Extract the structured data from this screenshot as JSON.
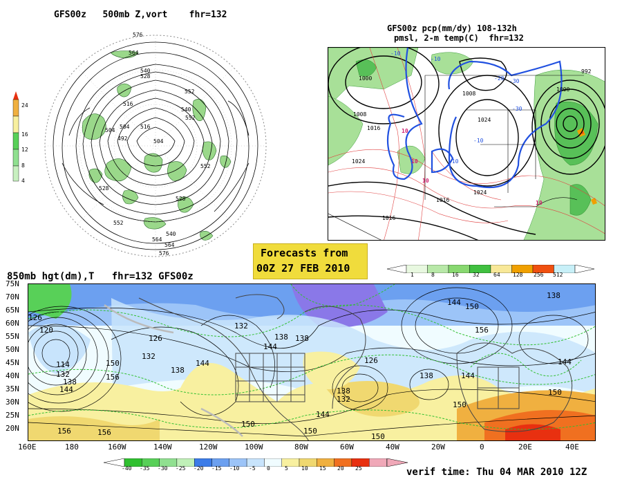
{
  "polar_panel": {
    "title": "GFS00z   500mb Z,vort    fhr=132",
    "colorbar_labels": [
      "24",
      "16",
      "12",
      "8",
      "4"
    ],
    "contour_labels": [
      "576",
      "564",
      "552",
      "540",
      "528",
      "516",
      "504",
      "492",
      "528",
      "552",
      "540",
      "516",
      "504",
      "504",
      "552",
      "564",
      "576",
      "552",
      "564",
      "540",
      "528"
    ]
  },
  "conus_panel": {
    "title_line1": "GFS00z pcp(mm/dy) 108-132h",
    "title_line2": "pmsl, 2-m temp(C)  fhr=132",
    "isobar_labels": [
      "1000",
      "1008",
      "1016",
      "1024",
      "1024",
      "1016",
      "1016",
      "1008",
      "1000",
      "1024",
      "992"
    ],
    "temp_labels": [
      "-10",
      "-10",
      "-20",
      "-30",
      "-30",
      "-10",
      "-10",
      "10",
      "10",
      "10",
      "10"
    ],
    "colorbar_labels": [
      "1",
      "8",
      "16",
      "32",
      "64",
      "128",
      "256",
      "512"
    ],
    "colorbar_colors": [
      "#e8f8e0",
      "#b8e8a8",
      "#88d870",
      "#40c040",
      "#f8e898",
      "#f0a000",
      "#f05010",
      "#c8f0f8"
    ]
  },
  "forecast_box": {
    "line1": "Forecasts from",
    "line2": "00Z 27 FEB 2010"
  },
  "hemi_panel": {
    "title": "850mb hgt(dm),T   fhr=132 GFS00z",
    "lat_labels": [
      "75N",
      "70N",
      "65N",
      "60N",
      "55N",
      "50N",
      "45N",
      "40N",
      "35N",
      "30N",
      "25N",
      "20N"
    ],
    "lon_labels": [
      "160E",
      "180",
      "160W",
      "140W",
      "120W",
      "100W",
      "80W",
      "60W",
      "40W",
      "20W",
      "0",
      "20E",
      "40E"
    ],
    "height_labels": [
      "126",
      "120",
      "114",
      "132",
      "138",
      "144",
      "150",
      "156",
      "126",
      "132",
      "138",
      "144",
      "150",
      "156",
      "132",
      "138",
      "126",
      "138",
      "144",
      "150",
      "138",
      "132",
      "144",
      "150",
      "156",
      "138",
      "144",
      "150",
      "156",
      "144",
      "150",
      "138",
      "144",
      "150"
    ],
    "colorbar_labels": [
      "-40",
      "-35",
      "-30",
      "-25",
      "-20",
      "-15",
      "-10",
      "-5",
      "0",
      "5",
      "10",
      "15",
      "20",
      "25"
    ],
    "colorbar_colors": [
      "#30c030",
      "#58d058",
      "#90e090",
      "#c0f0b8",
      "#3c7ce8",
      "#6ca0f0",
      "#9cc4f8",
      "#c8e4fc",
      "#f0fcff",
      "#f8f0a0",
      "#f0d870",
      "#f0b040",
      "#f07020",
      "#e83010",
      "#f0a8b8"
    ]
  },
  "verif_time": "verif time: Thu 04 MAR 2010 12Z"
}
